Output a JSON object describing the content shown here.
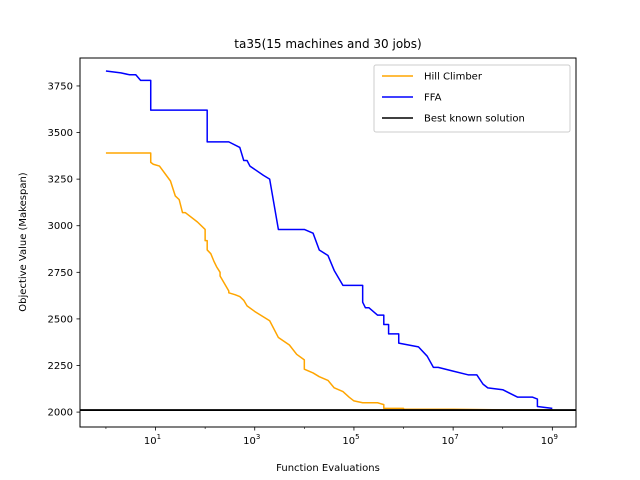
{
  "chart_data": {
    "type": "line",
    "title": "ta35(15 machines and 30 jobs)",
    "xlabel": "Function Evaluations",
    "ylabel": "Objective Value (Makespan)",
    "x_scale": "log",
    "xlim": [
      0.3,
      3000000000
    ],
    "ylim": [
      1920,
      3900
    ],
    "x_ticks": [
      10,
      1000,
      100000,
      10000000,
      1000000000
    ],
    "x_tick_labels": [
      {
        "base": "10",
        "exp": "1"
      },
      {
        "base": "10",
        "exp": "3"
      },
      {
        "base": "10",
        "exp": "5"
      },
      {
        "base": "10",
        "exp": "7"
      },
      {
        "base": "10",
        "exp": "9"
      }
    ],
    "y_ticks": [
      2000,
      2250,
      2500,
      2750,
      3000,
      3250,
      3500,
      3750
    ],
    "y_tick_labels": [
      "2000",
      "2250",
      "2500",
      "2750",
      "3000",
      "3250",
      "3500",
      "3750"
    ],
    "grid": false,
    "legend_position": "top-right",
    "series": [
      {
        "name": "Hill Climber",
        "color": "#FFA500",
        "x": [
          1,
          8,
          8,
          9,
          12,
          20,
          20,
          25,
          30,
          35,
          40,
          70,
          70,
          100,
          100,
          110,
          110,
          130,
          150,
          170,
          200,
          200,
          300,
          300,
          400,
          500,
          600,
          700,
          1000,
          2000,
          3000,
          5000,
          7000,
          10000,
          10000,
          15000,
          20000,
          30000,
          40000,
          60000,
          80000,
          100000,
          100000,
          150000,
          300000,
          400000,
          400000,
          1000000,
          1000000,
          10000000,
          100000000,
          1000000000,
          1000000000
        ],
        "y": [
          3390,
          3390,
          3340,
          3330,
          3320,
          3240,
          3240,
          3160,
          3140,
          3070,
          3070,
          3020,
          3020,
          2980,
          2920,
          2920,
          2870,
          2850,
          2810,
          2780,
          2750,
          2730,
          2650,
          2640,
          2630,
          2620,
          2600,
          2570,
          2540,
          2490,
          2400,
          2360,
          2310,
          2280,
          2230,
          2210,
          2190,
          2170,
          2130,
          2110,
          2080,
          2060,
          2060,
          2050,
          2050,
          2040,
          2020,
          2020,
          2015,
          2015,
          2012,
          2012,
          2010
        ]
      },
      {
        "name": "FFA",
        "color": "#0000FF",
        "x": [
          1,
          2,
          3,
          4,
          5,
          8,
          8,
          50,
          100,
          110,
          110,
          300,
          500,
          500,
          600,
          700,
          800,
          800,
          1500,
          2000,
          3000,
          4000,
          10000,
          15000,
          20000,
          20000,
          30000,
          40000,
          40000,
          60000,
          60000,
          100000,
          150000,
          150000,
          170000,
          200000,
          200000,
          300000,
          400000,
          400000,
          500000,
          500000,
          700000,
          800000,
          800000,
          2000000,
          3000000,
          4000000,
          5000000,
          10000000,
          10000000,
          20000000,
          30000000,
          40000000,
          50000000,
          100000000,
          100000000,
          200000000,
          400000000,
          400000000,
          500000000,
          500000000,
          1000000000,
          1000000000
        ],
        "y": [
          3830,
          3820,
          3810,
          3810,
          3780,
          3780,
          3620,
          3620,
          3620,
          3620,
          3450,
          3450,
          3420,
          3420,
          3350,
          3350,
          3320,
          3320,
          3270,
          3250,
          2980,
          2980,
          2980,
          2960,
          2870,
          2870,
          2840,
          2760,
          2760,
          2680,
          2680,
          2680,
          2680,
          2590,
          2560,
          2560,
          2560,
          2520,
          2520,
          2470,
          2470,
          2420,
          2420,
          2420,
          2370,
          2350,
          2300,
          2240,
          2240,
          2220,
          2220,
          2200,
          2200,
          2150,
          2130,
          2120,
          2120,
          2080,
          2080,
          2080,
          2070,
          2030,
          2020,
          2020
        ]
      },
      {
        "name": "Best known solution",
        "color": "#000000",
        "x": [
          0.3,
          3000000000
        ],
        "y": [
          2011,
          2011
        ]
      }
    ]
  }
}
